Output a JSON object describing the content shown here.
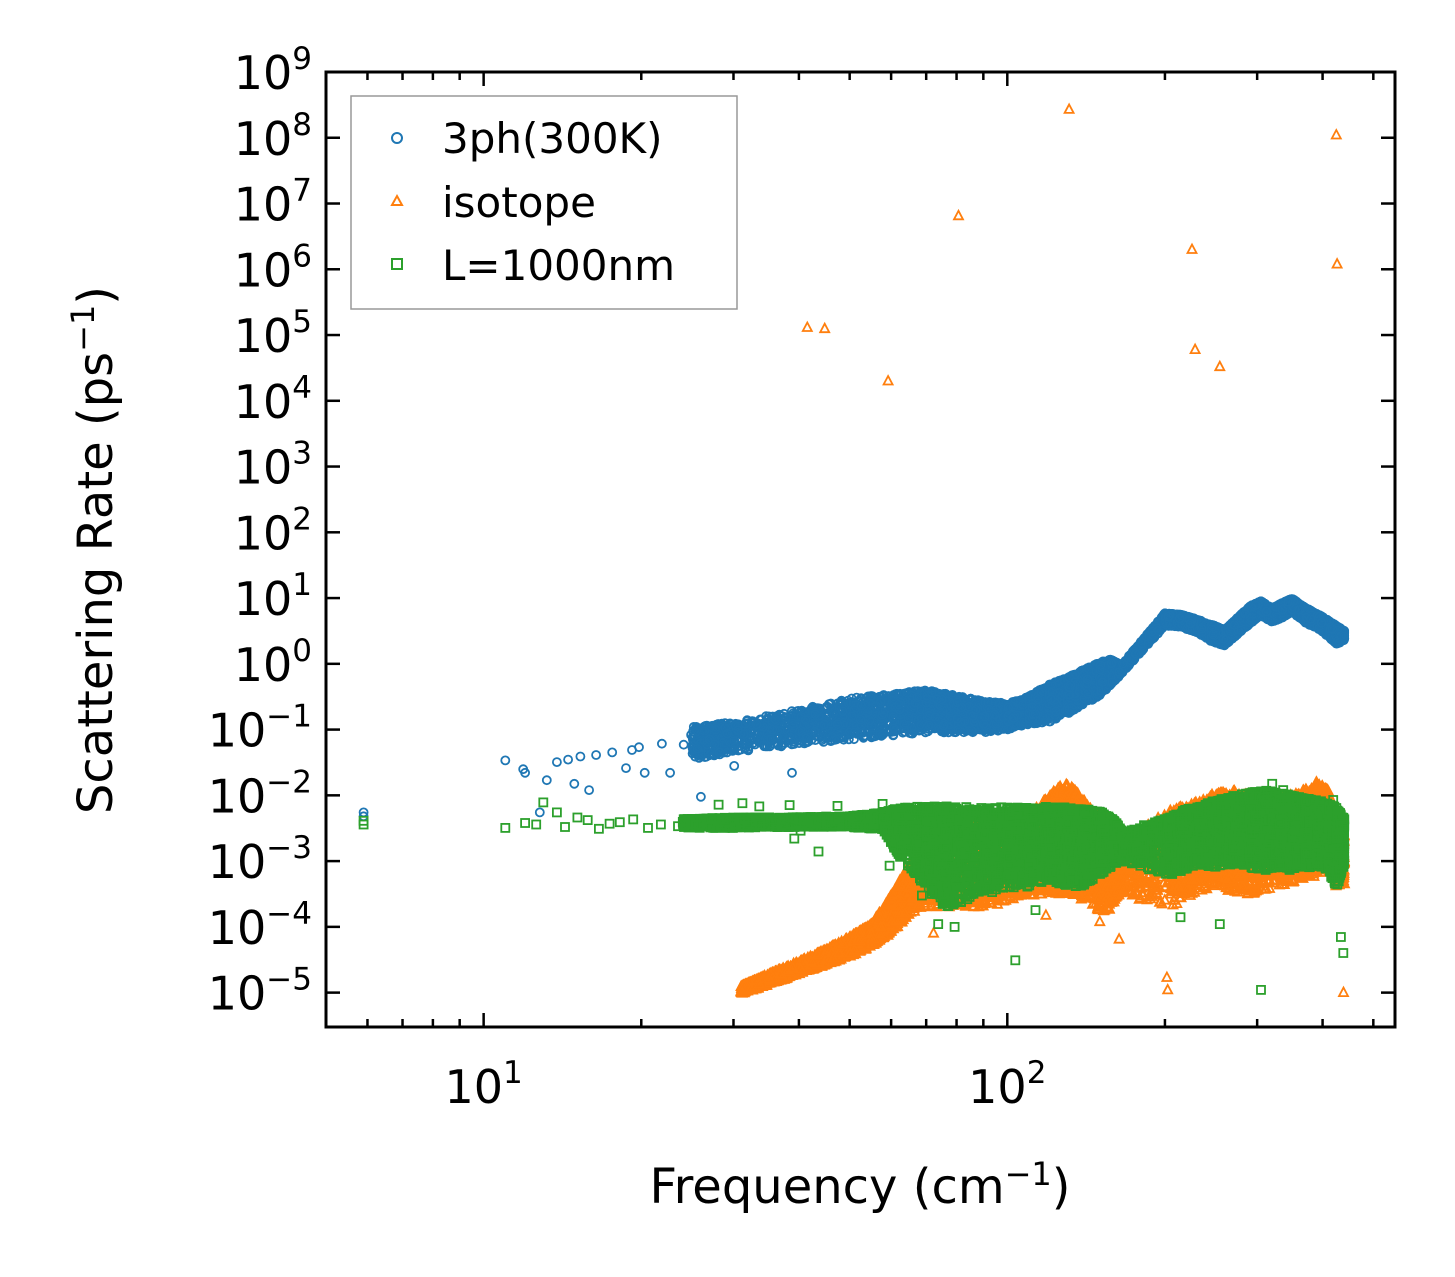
{
  "chart_data": {
    "type": "scatter",
    "title": "",
    "xlabel": "Frequency (cm⁻¹)",
    "ylabel": "Scattering Rate (ps⁻¹)",
    "xscale": "log",
    "yscale": "log",
    "xlim": [
      5,
      550
    ],
    "ylim": [
      3e-06,
      1000000000
    ],
    "grid": false,
    "legend_position": "top-left",
    "x_tick_labels": [
      {
        "value": 10,
        "base": "10",
        "exp": "1"
      },
      {
        "value": 100,
        "base": "10",
        "exp": "2"
      }
    ],
    "y_tick_labels": [
      {
        "value": 1e-05,
        "base": "10",
        "exp": "−5"
      },
      {
        "value": 0.0001,
        "base": "10",
        "exp": "−4"
      },
      {
        "value": 0.001,
        "base": "10",
        "exp": "−3"
      },
      {
        "value": 0.01,
        "base": "10",
        "exp": "−2"
      },
      {
        "value": 0.1,
        "base": "10",
        "exp": "−1"
      },
      {
        "value": 1,
        "base": "10",
        "exp": "0"
      },
      {
        "value": 10,
        "base": "10",
        "exp": "1"
      },
      {
        "value": 100,
        "base": "10",
        "exp": "2"
      },
      {
        "value": 1000,
        "base": "10",
        "exp": "3"
      },
      {
        "value": 10000,
        "base": "10",
        "exp": "4"
      },
      {
        "value": 100000,
        "base": "10",
        "exp": "5"
      },
      {
        "value": 1000000,
        "base": "10",
        "exp": "6"
      },
      {
        "value": 10000000,
        "base": "10",
        "exp": "7"
      },
      {
        "value": 100000000,
        "base": "10",
        "exp": "8"
      },
      {
        "value": 1000000000,
        "base": "10",
        "exp": "9"
      }
    ],
    "series": [
      {
        "name": "3ph(300K)",
        "color": "#1f77b4",
        "marker": "circle",
        "points": [
          [
            5.9,
            0.0055
          ],
          [
            5.9,
            0.0048
          ],
          [
            11,
            0.034
          ],
          [
            11.9,
            0.025
          ],
          [
            12,
            0.022
          ],
          [
            12.8,
            0.0055
          ],
          [
            13.2,
            0.017
          ],
          [
            13.8,
            0.032
          ],
          [
            14.5,
            0.035
          ],
          [
            14.9,
            0.015
          ],
          [
            15.3,
            0.039
          ],
          [
            15.9,
            0.012
          ],
          [
            16.4,
            0.041
          ],
          [
            17.6,
            0.045
          ],
          [
            18.7,
            0.026
          ],
          [
            19.2,
            0.049
          ],
          [
            19.8,
            0.054
          ],
          [
            20.3,
            0.022
          ],
          [
            21.9,
            0.061
          ],
          [
            22.7,
            0.022
          ],
          [
            24.1,
            0.059
          ],
          [
            24.9,
            0.083
          ],
          [
            25.6,
            0.051
          ],
          [
            26,
            0.0095
          ],
          [
            27,
            0.071
          ],
          [
            27.6,
            0.06
          ],
          [
            28.2,
            0.045
          ],
          [
            29.2,
            0.087
          ],
          [
            30.1,
            0.028
          ],
          [
            30.6,
            0.098
          ],
          [
            31.4,
            0.085
          ],
          [
            33.2,
            0.12
          ],
          [
            35.6,
            0.1
          ],
          [
            37.8,
            0.15
          ],
          [
            38.8,
            0.022
          ],
          [
            41.2,
            0.14
          ],
          [
            44.7,
            0.12
          ],
          [
            48.5,
            0.19
          ],
          [
            52.6,
            0.23
          ],
          [
            57.3,
            0.26
          ],
          [
            62.1,
            0.24
          ],
          [
            67.3,
            0.31
          ],
          [
            73.4,
            0.29
          ],
          [
            80.2,
            0.26
          ],
          [
            87.1,
            0.2
          ],
          [
            94.6,
            0.17
          ],
          [
            102.8,
            0.15
          ],
          [
            111.5,
            0.22
          ],
          [
            121.2,
            0.29
          ],
          [
            131.5,
            0.43
          ],
          [
            142.3,
            0.58
          ],
          [
            150.3,
            0.82
          ],
          [
            158.1,
            1.02
          ],
          [
            163.5,
            0.75
          ],
          [
            203.1,
            5.2
          ],
          [
            213.4,
            4.9
          ],
          [
            223.8,
            4.1
          ],
          [
            235.1,
            3.4
          ],
          [
            247.2,
            2.8
          ],
          [
            258.6,
            2.4
          ],
          [
            271.3,
            3.9
          ],
          [
            284.7,
            5.7
          ],
          [
            298.2,
            7.8
          ],
          [
            312.5,
            6.2
          ],
          [
            327.4,
            5.1
          ],
          [
            343.6,
            8.7
          ],
          [
            361.1,
            6.6
          ],
          [
            379.8,
            4.8
          ],
          [
            398.2,
            4.2
          ],
          [
            417.5,
            3.4
          ],
          [
            431.2,
            2.1
          ],
          [
            439.6,
            2.6
          ]
        ],
        "band": [
          [
            25,
            0.035,
            0.11
          ],
          [
            30,
            0.045,
            0.13
          ],
          [
            40,
            0.06,
            0.2
          ],
          [
            50,
            0.07,
            0.3
          ],
          [
            60,
            0.08,
            0.35
          ],
          [
            70,
            0.09,
            0.4
          ],
          [
            80,
            0.09,
            0.33
          ],
          [
            90,
            0.09,
            0.27
          ],
          [
            100,
            0.1,
            0.25
          ],
          [
            110,
            0.12,
            0.32
          ],
          [
            120,
            0.13,
            0.48
          ],
          [
            130,
            0.17,
            0.62
          ],
          [
            140,
            0.24,
            0.82
          ],
          [
            150,
            0.32,
            1.05
          ],
          [
            158,
            0.48,
            1.18
          ],
          [
            165,
            0.7,
            0.95
          ],
          [
            200,
            3.8,
            5.9
          ],
          [
            215,
            3.6,
            5.6
          ],
          [
            230,
            3.0,
            4.8
          ],
          [
            245,
            2.2,
            4.0
          ],
          [
            260,
            1.9,
            3.3
          ],
          [
            275,
            2.8,
            5.0
          ],
          [
            290,
            4.0,
            7.5
          ],
          [
            305,
            5.5,
            9.0
          ],
          [
            320,
            4.3,
            7.0
          ],
          [
            335,
            5.0,
            8.5
          ],
          [
            350,
            6.2,
            9.8
          ],
          [
            370,
            4.2,
            7.2
          ],
          [
            390,
            3.5,
            5.8
          ],
          [
            410,
            2.6,
            4.6
          ],
          [
            425,
            2.0,
            3.8
          ],
          [
            440,
            2.3,
            3.2
          ]
        ]
      },
      {
        "name": "isotope",
        "color": "#ff7f0e",
        "marker": "triangle",
        "points": [
          [
            41.5,
            130000
          ],
          [
            44.8,
            125000
          ],
          [
            59.2,
            20000
          ],
          [
            80.7,
            6500000
          ],
          [
            131.2,
            270000000
          ],
          [
            225.3,
            2000000
          ],
          [
            228.4,
            60000
          ],
          [
            254.6,
            33000
          ],
          [
            424.8,
            110000000
          ],
          [
            426.3,
            1200000
          ],
          [
            31.2,
            1e-05
          ],
          [
            32.4,
            1.15e-05
          ],
          [
            33.6,
            1.35e-05
          ],
          [
            35.1,
            1.6e-05
          ],
          [
            36.8,
            1.9e-05
          ],
          [
            38.9,
            2.4e-05
          ],
          [
            42.2,
            3e-05
          ],
          [
            48.6,
            5.5e-05
          ],
          [
            57.3,
            0.0001
          ],
          [
            63.7,
            0.00016
          ],
          [
            72.3,
            8e-05
          ],
          [
            95.8,
            0.00022
          ],
          [
            118.5,
            0.00015
          ],
          [
            150.2,
            0.00012
          ],
          [
            163.5,
            6.5e-05
          ],
          [
            201.7,
            1.7e-05
          ],
          [
            202.4,
            1.1e-05
          ],
          [
            212.5,
            0.0004
          ],
          [
            243.8,
            0.0011
          ],
          [
            337.3,
            0.0009
          ],
          [
            438.6,
            1e-05
          ],
          [
            440.2,
            0.00045
          ]
        ],
        "band": [
          [
            31,
            9.5e-06,
            1.25e-05
          ],
          [
            35,
            1.3e-05,
            1.9e-05
          ],
          [
            40,
            1.9e-05,
            3e-05
          ],
          [
            45,
            2.6e-05,
            4.5e-05
          ],
          [
            50,
            3.5e-05,
            7e-05
          ],
          [
            55,
            5e-05,
            0.00011
          ],
          [
            60,
            8e-05,
            0.0003
          ],
          [
            65,
            0.00015,
            0.0009
          ],
          [
            70,
            0.0002,
            0.003
          ],
          [
            80,
            0.0002,
            0.006
          ],
          [
            90,
            0.0002,
            0.006
          ],
          [
            100,
            0.00025,
            0.004
          ],
          [
            110,
            0.0003,
            0.005
          ],
          [
            120,
            0.0003,
            0.01
          ],
          [
            128,
            0.0003,
            0.016
          ],
          [
            135,
            0.0003,
            0.012
          ],
          [
            145,
            0.0002,
            0.006
          ],
          [
            155,
            0.00015,
            0.004
          ],
          [
            165,
            0.0003,
            0.002
          ],
          [
            205,
            0.0002,
            0.006
          ],
          [
            225,
            0.0003,
            0.008
          ],
          [
            250,
            0.0004,
            0.011
          ],
          [
            275,
            0.0003,
            0.012
          ],
          [
            300,
            0.0003,
            0.01
          ],
          [
            330,
            0.0004,
            0.009
          ],
          [
            360,
            0.0005,
            0.011
          ],
          [
            390,
            0.0006,
            0.016
          ],
          [
            410,
            0.0008,
            0.012
          ],
          [
            425,
            0.0004,
            0.006
          ],
          [
            440,
            0.0005,
            0.003
          ]
        ]
      },
      {
        "name": "L=1000nm",
        "color": "#2ca02c",
        "marker": "square",
        "points": [
          [
            5.9,
            0.0036
          ],
          [
            5.9,
            0.0041
          ],
          [
            11,
            0.0032
          ],
          [
            12,
            0.0038
          ],
          [
            12.6,
            0.0036
          ],
          [
            13,
            0.0078
          ],
          [
            13.8,
            0.0055
          ],
          [
            14.3,
            0.0033
          ],
          [
            15.1,
            0.0046
          ],
          [
            15.8,
            0.0042
          ],
          [
            16.6,
            0.0031
          ],
          [
            17.4,
            0.0037
          ],
          [
            18.2,
            0.0039
          ],
          [
            19.3,
            0.0043
          ],
          [
            20.6,
            0.0032
          ],
          [
            21.8,
            0.0036
          ],
          [
            23.5,
            0.0034
          ],
          [
            25.4,
            0.0035
          ],
          [
            28.1,
            0.0072
          ],
          [
            31.2,
            0.0076
          ],
          [
            33.6,
            0.0068
          ],
          [
            38.4,
            0.0071
          ],
          [
            39.2,
            0.0022
          ],
          [
            40.3,
            0.0029
          ],
          [
            43.6,
            0.0014
          ],
          [
            47.4,
            0.0069
          ],
          [
            57.8,
            0.0074
          ],
          [
            59.6,
            0.00085
          ],
          [
            68.7,
            0.0003
          ],
          [
            73.8,
            0.00011
          ],
          [
            79.3,
            0.0001
          ],
          [
            103.6,
            3.1e-05
          ],
          [
            113.2,
            0.00018
          ],
          [
            214.2,
            0.00014
          ],
          [
            254.6,
            0.00011
          ],
          [
            305.1,
            1.1e-05
          ],
          [
            433.5,
            7e-05
          ],
          [
            438.2,
            4e-05
          ],
          [
            336.4,
            0.012
          ],
          [
            320.5,
            0.015
          ],
          [
            240.1,
            0.0065
          ],
          [
            419.2,
            0.0085
          ]
        ],
        "band": [
          [
            24,
            0.0032,
            0.0044
          ],
          [
            30,
            0.0032,
            0.0046
          ],
          [
            40,
            0.0033,
            0.0047
          ],
          [
            50,
            0.0033,
            0.0048
          ],
          [
            58,
            0.003,
            0.0055
          ],
          [
            62,
            0.0012,
            0.0065
          ],
          [
            70,
            0.0004,
            0.0068
          ],
          [
            75,
            0.0002,
            0.0068
          ],
          [
            80,
            0.0002,
            0.0067
          ],
          [
            90,
            0.0003,
            0.0065
          ],
          [
            100,
            0.0004,
            0.0066
          ],
          [
            110,
            0.0004,
            0.0068
          ],
          [
            120,
            0.0005,
            0.0068
          ],
          [
            130,
            0.0004,
            0.0066
          ],
          [
            140,
            0.0004,
            0.0062
          ],
          [
            150,
            0.0006,
            0.0058
          ],
          [
            160,
            0.0009,
            0.0042
          ],
          [
            166,
            0.001,
            0.0028
          ],
          [
            202,
            0.0006,
            0.0045
          ],
          [
            215,
            0.0007,
            0.0058
          ],
          [
            230,
            0.0009,
            0.007
          ],
          [
            250,
            0.0008,
            0.0085
          ],
          [
            270,
            0.0009,
            0.01
          ],
          [
            290,
            0.0008,
            0.011
          ],
          [
            310,
            0.0007,
            0.012
          ],
          [
            330,
            0.0008,
            0.011
          ],
          [
            350,
            0.0007,
            0.01
          ],
          [
            370,
            0.0008,
            0.009
          ],
          [
            390,
            0.0008,
            0.0085
          ],
          [
            410,
            0.0007,
            0.0075
          ],
          [
            425,
            0.0004,
            0.0065
          ],
          [
            440,
            0.0008,
            0.0045
          ]
        ]
      }
    ]
  }
}
